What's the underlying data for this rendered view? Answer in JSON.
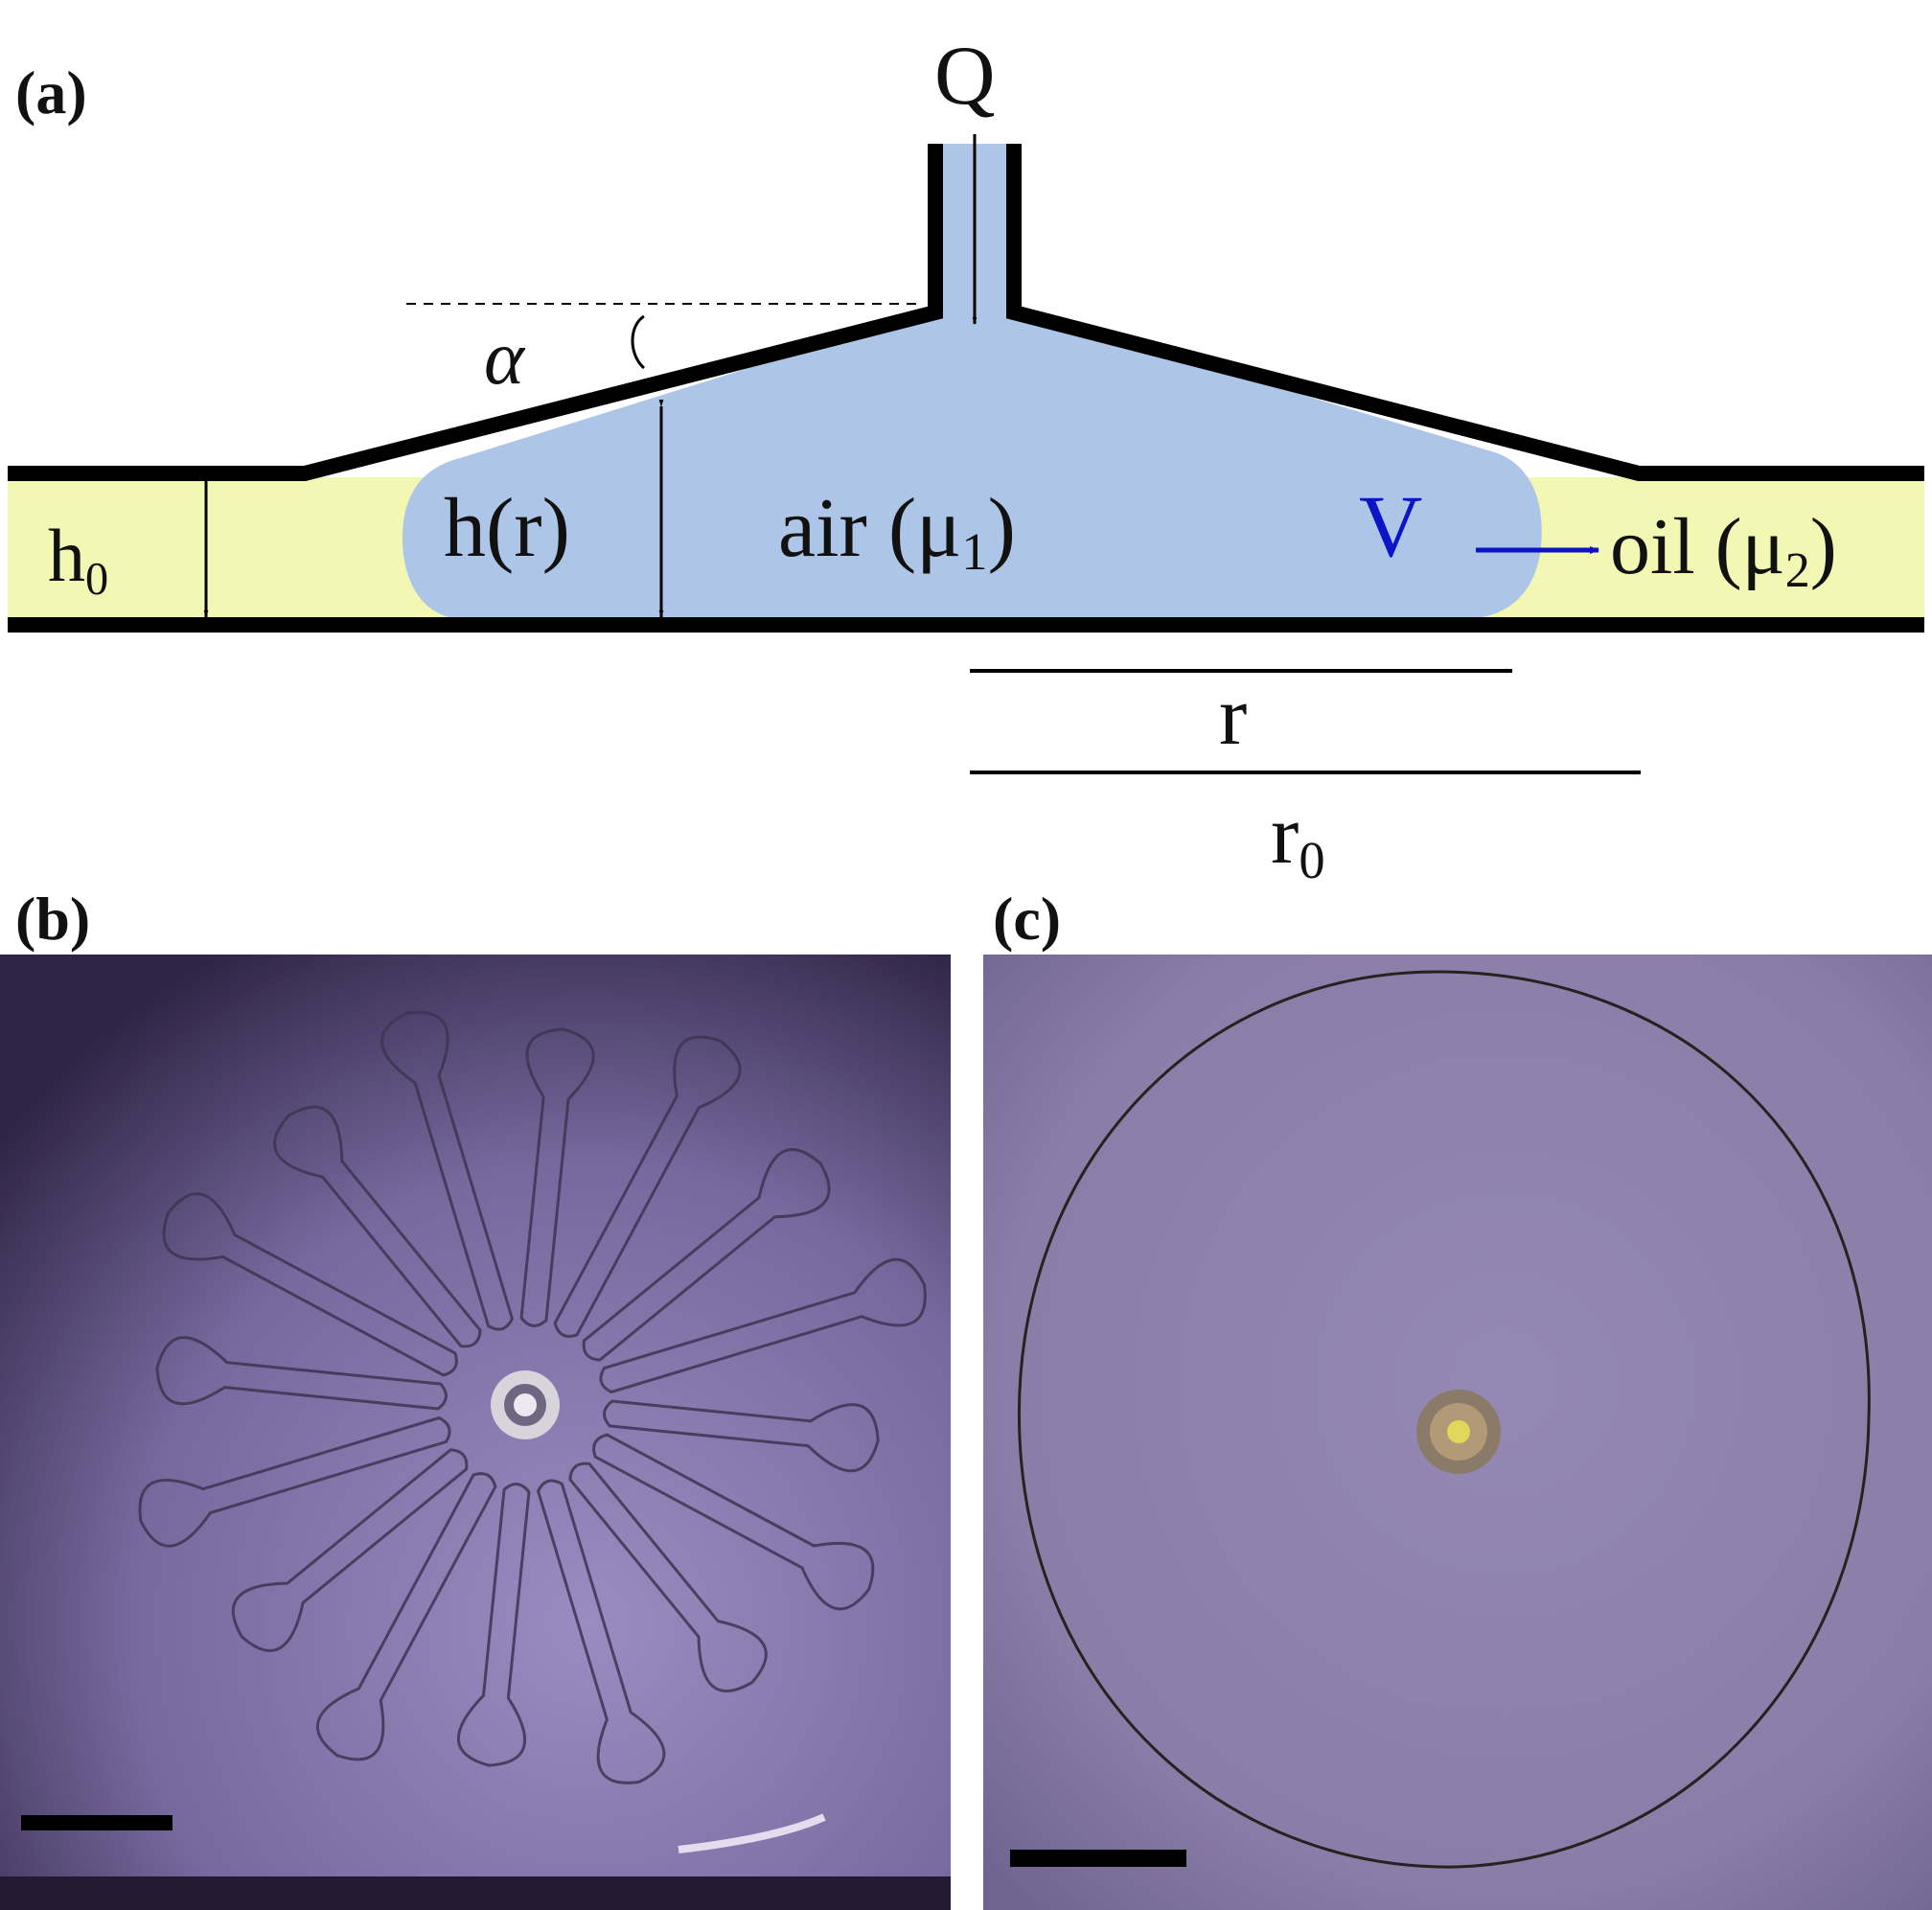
{
  "panels": {
    "a": {
      "label": "(a)"
    },
    "b": {
      "label": "(b)"
    },
    "c": {
      "label": "(c)"
    }
  },
  "schematic": {
    "flow_rate": "Q",
    "angle": "α",
    "gap_symbol": "h",
    "gap_subscript": "0",
    "local_gap": "h(r)",
    "inner_fluid": "air (μ",
    "inner_fluid_subscript": "1",
    "inner_fluid_close": ")",
    "velocity": "V",
    "outer_fluid": "oil (μ",
    "outer_fluid_subscript": "2",
    "outer_fluid_close": ")",
    "radius": "r",
    "outer_radius_symbol": "r",
    "outer_radius_subscript": "0"
  },
  "colors": {
    "air": "#adc5e6",
    "oil": "#f3f7b4",
    "wall": "#000000",
    "velocity": "#0a14c8",
    "photo_b": "#75679a",
    "photo_c": "#8e82ad"
  }
}
